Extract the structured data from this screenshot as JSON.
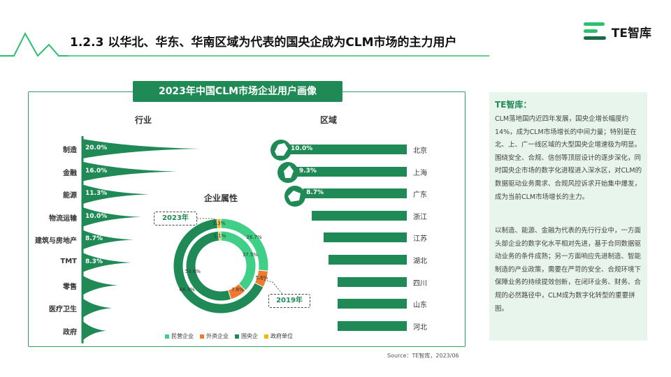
{
  "header": {
    "title": "1.2.3 以华北、华东、华南区域为代表的国央企成为CLM市场的主力用户",
    "logo_text": "TE智库"
  },
  "panel": {
    "title": "2023年中国CLM市场企业用户画像"
  },
  "colors": {
    "green": "#1f8a55",
    "light_green": "#3fcf86",
    "orange": "#f07a2e",
    "yellow": "#f2b705"
  },
  "chart_data": [
    {
      "type": "bar",
      "title": "行业",
      "categories": [
        "制造",
        "金融",
        "能源",
        "物流运输",
        "建筑与房地产",
        "TMT",
        "零售",
        "医疗卫生",
        "政府"
      ],
      "values": [
        20.0,
        16.0,
        11.3,
        10.0,
        8.7,
        8.3,
        6.0,
        5.0,
        4.0
      ],
      "value_labels": [
        "20.0%",
        "16.0%",
        "11.3%",
        "10.0%",
        "8.7%",
        "8.3%",
        "",
        "",
        ""
      ]
    },
    {
      "type": "bar",
      "title": "区域",
      "categories": [
        "北京",
        "上海",
        "广东",
        "浙江",
        "江苏",
        "湖北",
        "四川",
        "山东",
        "河北"
      ],
      "values": [
        10.0,
        9.3,
        8.7,
        8.0,
        7.0,
        6.6,
        5.8,
        5.8,
        5.8
      ],
      "value_labels": [
        "10.0%",
        "9.3%",
        "8.7%",
        "",
        "",
        "",
        "",
        "",
        ""
      ]
    },
    {
      "type": "pie",
      "title": "企业属性",
      "legend": [
        "民营企业",
        "外资企业",
        "国央企",
        "政府单位"
      ],
      "series": [
        {
          "name": "2023年",
          "values": [
            37.5,
            7.8,
            53.6,
            1.1
          ],
          "labels": [
            "37.5%",
            "",
            "53.6%",
            "1.1%"
          ]
        },
        {
          "name": "2019年",
          "values": [
            26.7,
            5.6,
            66.3,
            1.3
          ],
          "labels": [
            "26.7%",
            "5.6%",
            "66.3%",
            "1.3%"
          ]
        }
      ],
      "inner_extra_labels": [
        "7.8%"
      ]
    }
  ],
  "summary": {
    "title": "TE智库：",
    "paragraph1": "CLM落地国内近四年发展，国央企增长幅度约14%，成为CLM市场增长的中间力量；特别是在北、上、广一线区域的大型国央企增速极为明显。围绕安全、合规、信创等顶层设计的逐步深化，同时国央企市场的数字化进程进入深水区，对CLM的数据驱动业务需求、合规风控诉求开始集中爆发，成为当前CLM市场增长的主力。",
    "paragraph2": "以制造、能源、金融为代表的先行行业中，一方面头部企业的数字化水平相对先进，基于合同数据驱动业务的条件成熟；另一方面响应先进制造、智能制造的产业政策，需要在严苛的安全、合规环境下保障业务的持续提效创新，在闭环业务、财务、合规的必然路径中，CLM成为数字化转型的重要拼图。"
  },
  "source": "Source：TE智库，2023/06"
}
